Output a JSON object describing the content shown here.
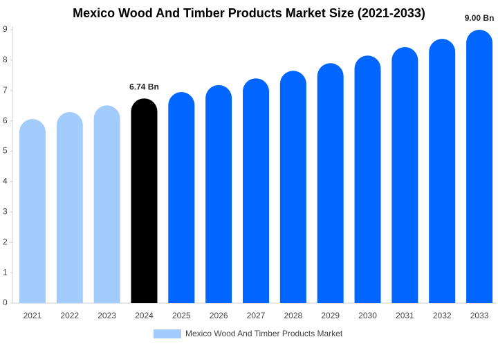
{
  "chart_data": {
    "type": "bar",
    "title": "Mexico Wood And Timber Products Market Size (2021-2033)",
    "categories": [
      "2021",
      "2022",
      "2023",
      "2024",
      "2025",
      "2026",
      "2027",
      "2028",
      "2029",
      "2030",
      "2031",
      "2032",
      "2033"
    ],
    "series": [
      {
        "name": "Mexico Wood And Timber Products Market",
        "color": "#a3cbfb",
        "values": [
          6.06,
          6.29,
          6.51,
          6.74,
          6.95,
          7.18,
          7.4,
          7.65,
          7.9,
          8.15,
          8.43,
          8.7,
          9.0
        ],
        "colors": [
          "#a3cbfb",
          "#a3cbfb",
          "#a3cbfb",
          "#000000",
          "#0066ff",
          "#0066ff",
          "#0066ff",
          "#0066ff",
          "#0066ff",
          "#0066ff",
          "#0066ff",
          "#0066ff",
          "#0066ff"
        ],
        "value_labels": [
          null,
          null,
          null,
          "6.74 Bn",
          null,
          null,
          null,
          null,
          null,
          null,
          null,
          null,
          "9.00 Bn"
        ]
      }
    ],
    "ylim": [
      0,
      9
    ],
    "yticks": [
      0,
      1,
      2,
      3,
      4,
      5,
      6,
      7,
      8,
      9
    ],
    "grid": false,
    "legend": "bottom"
  }
}
